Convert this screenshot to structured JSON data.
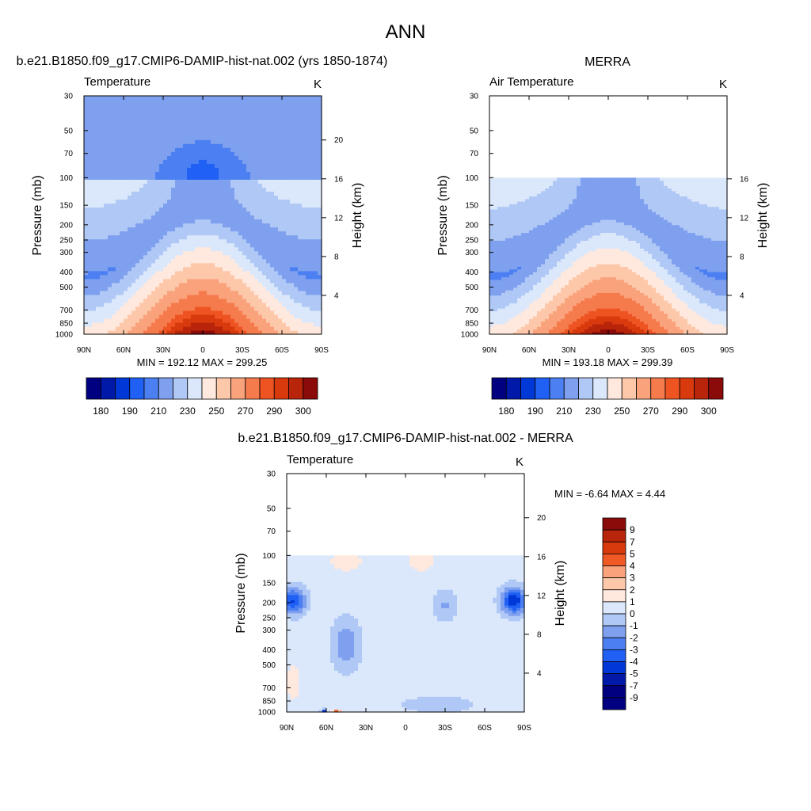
{
  "page": {
    "title": "ANN"
  },
  "chart_data": [
    {
      "type": "heatmap",
      "title": "b.e21.B1850.f09_g17.CMIP6-DAMIP-hist-nat.002 (yrs 1850-1874)",
      "left_label": "Temperature",
      "right_label": "K",
      "xlabel": "",
      "ylabel": "Pressure (mb)",
      "y2label": "Height (km)",
      "x_ticks": [
        "90N",
        "60N",
        "30N",
        "0",
        "30S",
        "60S",
        "90S"
      ],
      "y_ticks": [
        "30",
        "50",
        "70",
        "100",
        "150",
        "200",
        "250",
        "300",
        "400",
        "500",
        "700",
        "850",
        "1000"
      ],
      "y2_ticks": [
        "20",
        "16",
        "12",
        "8",
        "4"
      ],
      "ylim": [
        1000,
        30
      ],
      "xlim": [
        "90N",
        "90S"
      ],
      "stats": "MIN = 192.12  MAX = 299.25",
      "colorbar": {
        "orientation": "horizontal",
        "labels": [
          "180",
          "190",
          "210",
          "230",
          "250",
          "270",
          "290",
          "300"
        ],
        "colors": [
          "#000080",
          "#0019a8",
          "#0038d8",
          "#2060f5",
          "#4c80f2",
          "#7ea0ee",
          "#b0c8f5",
          "#dbe8fb",
          "#ffe8dd",
          "#fdc8aa",
          "#f9a27c",
          "#f57a4c",
          "#ee5322",
          "#d83a0d",
          "#b8250a",
          "#8b0a0a"
        ]
      }
    },
    {
      "type": "heatmap",
      "title": "MERRA",
      "left_label": "Air Temperature",
      "right_label": "K",
      "xlabel": "",
      "ylabel": "Pressure (mb)",
      "y2label": "Height (km)",
      "x_ticks": [
        "90N",
        "60N",
        "30N",
        "0",
        "30S",
        "60S",
        "90S"
      ],
      "y_ticks": [
        "30",
        "50",
        "70",
        "100",
        "150",
        "200",
        "250",
        "300",
        "400",
        "500",
        "700",
        "850",
        "1000"
      ],
      "y2_ticks": [
        "16",
        "12",
        "8",
        "4"
      ],
      "ylim": [
        1000,
        30
      ],
      "data_top_mb": 100,
      "stats": "MIN = 193.18  MAX = 299.39",
      "colorbar": {
        "orientation": "horizontal",
        "labels": [
          "180",
          "190",
          "210",
          "230",
          "250",
          "270",
          "290",
          "300"
        ],
        "colors": [
          "#000080",
          "#0019a8",
          "#0038d8",
          "#2060f5",
          "#4c80f2",
          "#7ea0ee",
          "#b0c8f5",
          "#dbe8fb",
          "#ffe8dd",
          "#fdc8aa",
          "#f9a27c",
          "#f57a4c",
          "#ee5322",
          "#d83a0d",
          "#b8250a",
          "#8b0a0a"
        ]
      }
    },
    {
      "type": "heatmap",
      "title": "b.e21.B1850.f09_g17.CMIP6-DAMIP-hist-nat.002 - MERRA",
      "left_label": "Temperature",
      "right_label": "K",
      "xlabel": "",
      "ylabel": "Pressure (mb)",
      "y2label": "Height (km)",
      "x_ticks": [
        "90N",
        "60N",
        "30N",
        "0",
        "30S",
        "60S",
        "90S"
      ],
      "y_ticks": [
        "30",
        "50",
        "70",
        "100",
        "150",
        "200",
        "250",
        "300",
        "400",
        "500",
        "700",
        "850",
        "1000"
      ],
      "y2_ticks": [
        "20",
        "16",
        "12",
        "8",
        "4"
      ],
      "ylim": [
        1000,
        30
      ],
      "data_top_mb": 100,
      "stats": "MIN =  -6.64  MAX =   4.44",
      "colorbar": {
        "orientation": "vertical",
        "labels": [
          "9",
          "7",
          "5",
          "4",
          "3",
          "2",
          "1",
          "0",
          "-1",
          "-2",
          "-3",
          "-4",
          "-5",
          "-7",
          "-9"
        ],
        "colors": [
          "#8b0a0a",
          "#b8250a",
          "#d83a0d",
          "#f05a26",
          "#f9a27c",
          "#fdc8aa",
          "#ffe8dd",
          "#dbe8fb",
          "#b0c8f5",
          "#7ea0ee",
          "#4c80f2",
          "#2060f5",
          "#0038d8",
          "#0019a8",
          "#000080"
        ]
      }
    }
  ]
}
